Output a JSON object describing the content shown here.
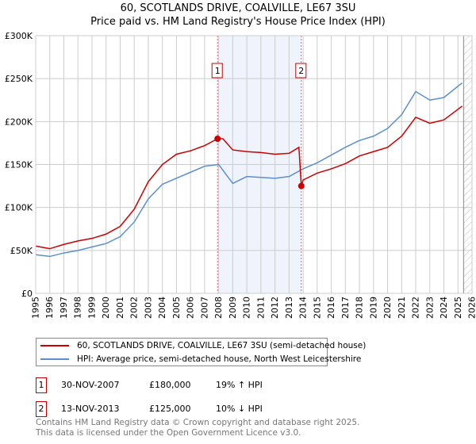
{
  "title": "60, SCOTLANDS DRIVE, COALVILLE, LE67 3SU",
  "subtitle": "Price paid vs. HM Land Registry's House Price Index (HPI)",
  "chart_data": {
    "type": "line",
    "xlim": [
      1995,
      2026
    ],
    "ylim": [
      0,
      300000
    ],
    "yticks": [
      {
        "v": 0,
        "label": "£0"
      },
      {
        "v": 50000,
        "label": "£50K"
      },
      {
        "v": 100000,
        "label": "£100K"
      },
      {
        "v": 150000,
        "label": "£150K"
      },
      {
        "v": 200000,
        "label": "£200K"
      },
      {
        "v": 250000,
        "label": "£250K"
      },
      {
        "v": 300000,
        "label": "£300K"
      }
    ],
    "xticks": [
      "1995",
      "1996",
      "1997",
      "1998",
      "1999",
      "2000",
      "2001",
      "2002",
      "2003",
      "2004",
      "2005",
      "2006",
      "2007",
      "2008",
      "2009",
      "2010",
      "2011",
      "2012",
      "2013",
      "2014",
      "2015",
      "2016",
      "2017",
      "2018",
      "2019",
      "2020",
      "2021",
      "2022",
      "2023",
      "2024",
      "2025",
      "2026"
    ],
    "grid": true,
    "shaded_region": [
      2007.92,
      2013.87
    ],
    "forecast_hatch_from": 2025.4,
    "series": [
      {
        "name": "60, SCOTLANDS DRIVE, COALVILLE, LE67 3SU (semi-detached house)",
        "color": "#cc0000",
        "x": [
          1995,
          1996,
          1997,
          1998,
          1999,
          2000,
          2001,
          2002,
          2003,
          2004,
          2005,
          2006,
          2007,
          2007.92,
          2008.3,
          2009,
          2010,
          2011,
          2012,
          2013,
          2013.7,
          2013.87,
          2014,
          2015,
          2016,
          2017,
          2018,
          2019,
          2020,
          2021,
          2022,
          2023,
          2024,
          2025.3
        ],
        "y": [
          55000,
          52000,
          57000,
          61000,
          64000,
          69000,
          78000,
          98000,
          130000,
          150000,
          162000,
          166000,
          172000,
          180000,
          180000,
          167000,
          165000,
          164000,
          162000,
          163000,
          170000,
          125000,
          132000,
          140000,
          145000,
          151000,
          160000,
          165000,
          170000,
          183000,
          205000,
          198000,
          202000,
          218000
        ]
      },
      {
        "name": "HPI: Average price, semi-detached house, North West Leicestershire",
        "color": "#5b8fd0",
        "x": [
          1995,
          1996,
          1997,
          1998,
          1999,
          2000,
          2001,
          2002,
          2003,
          2004,
          2005,
          2006,
          2007,
          2008,
          2009,
          2010,
          2011,
          2012,
          2013,
          2014,
          2015,
          2016,
          2017,
          2018,
          2019,
          2020,
          2021,
          2022,
          2023,
          2024,
          2025.3
        ],
        "y": [
          45000,
          43000,
          47000,
          50000,
          54000,
          58000,
          66000,
          83000,
          110000,
          127000,
          134000,
          141000,
          148000,
          150000,
          128000,
          136000,
          135000,
          134000,
          136000,
          145000,
          152000,
          161000,
          170000,
          178000,
          183000,
          192000,
          208000,
          235000,
          225000,
          228000,
          245000
        ]
      }
    ],
    "annotations": [
      {
        "label": "1",
        "x": 2007.92,
        "y": 180000
      },
      {
        "label": "2",
        "x": 2013.87,
        "y": 125000
      }
    ]
  },
  "legend": [
    "60, SCOTLANDS DRIVE, COALVILLE, LE67 3SU (semi-detached house)",
    "HPI: Average price, semi-detached house, North West Leicestershire"
  ],
  "transactions": [
    {
      "num": "1",
      "date": "30-NOV-2007",
      "price": "£180,000",
      "hpi": "19% ↑ HPI"
    },
    {
      "num": "2",
      "date": "13-NOV-2013",
      "price": "£125,000",
      "hpi": "10% ↓ HPI"
    }
  ],
  "footer": [
    "Contains HM Land Registry data © Crown copyright and database right 2025.",
    "This data is licensed under the Open Government Licence v3.0."
  ]
}
